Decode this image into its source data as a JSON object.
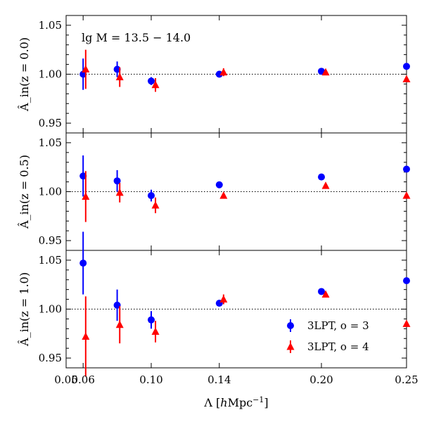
{
  "chart_data": {
    "type": "scatter",
    "xlabel": "Λ [hMpc⁻¹]",
    "xlim": [
      0.05,
      0.25
    ],
    "x_ticks": [
      {
        "value": 0.05,
        "label": "0.05"
      },
      {
        "value": 0.06,
        "label": "0.06"
      },
      {
        "value": 0.1,
        "label": "0.10"
      },
      {
        "value": 0.14,
        "label": "0.14"
      },
      {
        "value": 0.2,
        "label": "0.20"
      },
      {
        "value": 0.25,
        "label": "0.25"
      }
    ],
    "annotation": "lg M = 13.5 − 14.0",
    "reference_line": 1.0,
    "series": [
      {
        "name": "3LPT, o = 3",
        "color": "#0000ff",
        "marker": "circle"
      },
      {
        "name": "3LPT, o = 4",
        "color": "#ff0000",
        "marker": "triangle"
      }
    ],
    "panels": [
      {
        "ylabel": "Â_in(z = 0.0)",
        "ylim": [
          0.94,
          1.06
        ],
        "y_ticks": [
          "0.95",
          "1.00",
          "1.05"
        ],
        "y_tick_values": [
          0.95,
          1.0,
          1.05
        ],
        "series": [
          {
            "x": [
              0.06,
              0.08,
              0.1,
              0.14,
              0.2,
              0.25
            ],
            "y": [
              1.0,
              1.005,
              0.993,
              1.0,
              1.003,
              1.008
            ],
            "err": [
              0.016,
              0.008,
              0.004,
              0.002,
              0.002,
              0.0
            ]
          },
          {
            "x": [
              0.0615,
              0.0815,
              0.1025,
              0.1425,
              0.2025,
              0.25
            ],
            "y": [
              1.005,
              0.997,
              0.989,
              1.002,
              1.002,
              0.995
            ],
            "err": [
              0.02,
              0.01,
              0.007,
              0.004,
              0.002,
              0.0
            ]
          }
        ]
      },
      {
        "ylabel": "Â_in(z = 0.5)",
        "ylim": [
          0.94,
          1.06
        ],
        "y_ticks": [
          "0.95",
          "1.00",
          "1.05"
        ],
        "y_tick_values": [
          0.95,
          1.0,
          1.05
        ],
        "series": [
          {
            "x": [
              0.06,
              0.08,
              0.1,
              0.14,
              0.2,
              0.25
            ],
            "y": [
              1.016,
              1.011,
              0.996,
              1.007,
              1.015,
              1.023
            ],
            "err": [
              0.021,
              0.011,
              0.006,
              0.0,
              0.0,
              0.0
            ]
          },
          {
            "x": [
              0.0615,
              0.0815,
              0.1025,
              0.1425,
              0.2025,
              0.25
            ],
            "y": [
              0.995,
              0.999,
              0.986,
              0.996,
              1.006,
              0.996
            ],
            "err": [
              0.026,
              0.01,
              0.008,
              0.0,
              0.0,
              0.0
            ]
          }
        ]
      },
      {
        "ylabel": "Â_in(z = 1.0)",
        "ylim": [
          0.94,
          1.06
        ],
        "y_ticks": [
          "0.95",
          "1.00",
          "1.05"
        ],
        "y_tick_values": [
          0.95,
          1.0,
          1.05
        ],
        "series": [
          {
            "x": [
              0.06,
              0.08,
              0.1,
              0.14,
              0.2,
              0.25
            ],
            "y": [
              1.047,
              1.004,
              0.989,
              1.006,
              1.018,
              1.029
            ],
            "err": [
              0.032,
              0.016,
              0.009,
              0.003,
              0.0,
              0.0
            ]
          },
          {
            "x": [
              0.0615,
              0.0815,
              0.1025,
              0.1425,
              0.2025,
              0.25
            ],
            "y": [
              0.972,
              0.984,
              0.977,
              1.01,
              1.015,
              0.985
            ],
            "err": [
              0.041,
              0.019,
              0.011,
              0.005,
              0.003,
              0.0
            ]
          }
        ]
      }
    ]
  }
}
